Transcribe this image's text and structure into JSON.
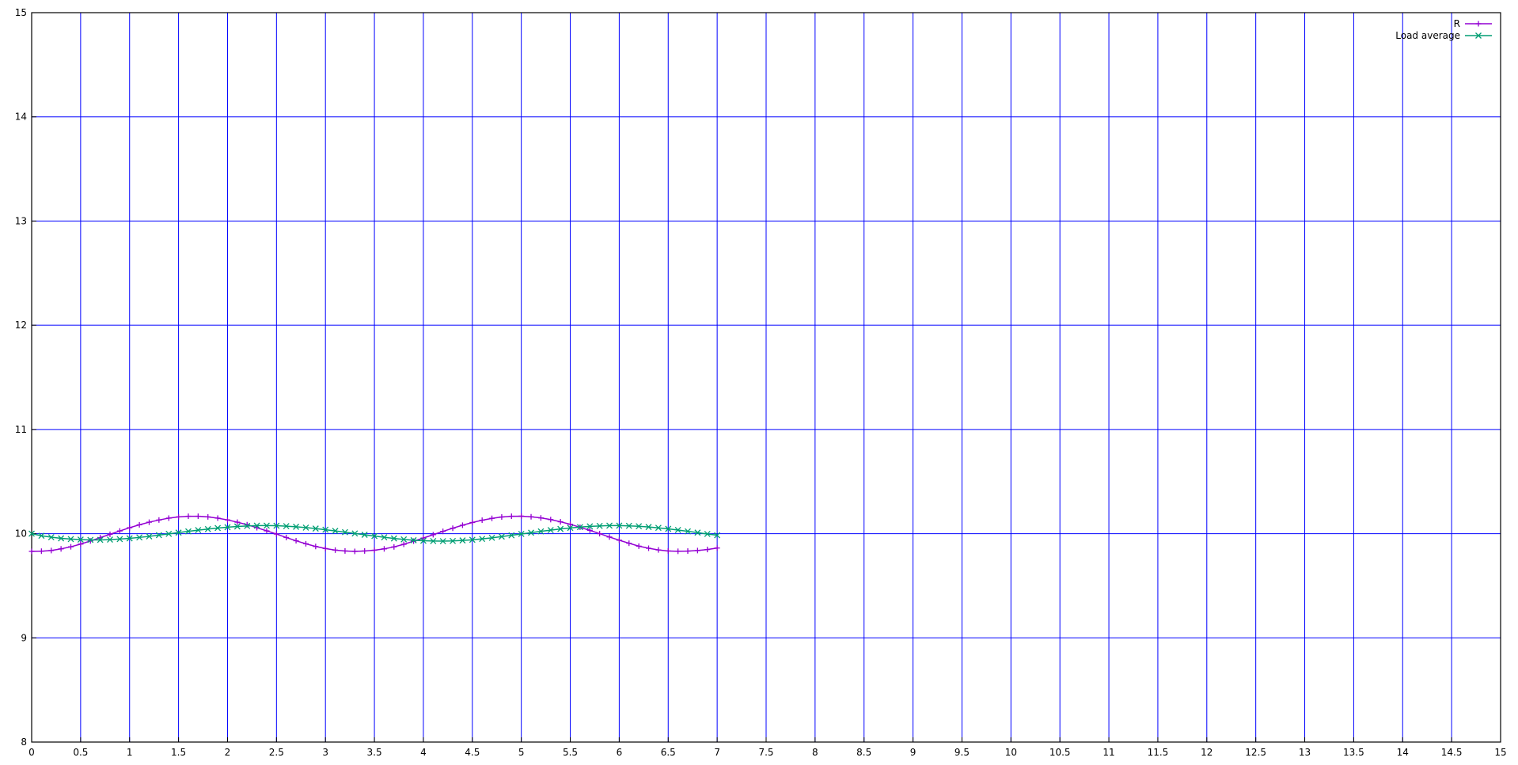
{
  "chart_data": {
    "type": "line",
    "title": "",
    "xlabel": "",
    "ylabel": "",
    "xlim": [
      0,
      15
    ],
    "ylim": [
      8,
      15
    ],
    "grid": true,
    "grid_color": "#0000ff",
    "legend_position": "top-right",
    "x_ticks": [
      "0",
      "0.5",
      "1",
      "1.5",
      "2",
      "2.5",
      "3",
      "3.5",
      "4",
      "4.5",
      "5",
      "5.5",
      "6",
      "6.5",
      "7",
      "7.5",
      "8",
      "8.5",
      "9",
      "9.5",
      "10",
      "10.5",
      "11",
      "11.5",
      "12",
      "12.5",
      "13",
      "13.5",
      "14",
      "14.5",
      "15"
    ],
    "y_ticks": [
      "8",
      "9",
      "10",
      "11",
      "12",
      "13",
      "14",
      "15"
    ],
    "series": [
      {
        "name": "R",
        "color": "#9400d3",
        "marker": "plus",
        "x": [
          0,
          0.1,
          0.2,
          0.3,
          0.4,
          0.5,
          0.6,
          0.7,
          0.8,
          0.9,
          1,
          1.1,
          1.2,
          1.3,
          1.4,
          1.5,
          1.6,
          1.7,
          1.8,
          1.9,
          2,
          2.1,
          2.2,
          2.3,
          2.4,
          2.5,
          2.6,
          2.7,
          2.8,
          2.9,
          3,
          3.1,
          3.2,
          3.3,
          3.4,
          3.5,
          3.6,
          3.7,
          3.8,
          3.9,
          4,
          4.1,
          4.2,
          4.3,
          4.4,
          4.5,
          4.6,
          4.7,
          4.8,
          4.9,
          5,
          5.1,
          5.2,
          5.3,
          5.4,
          5.5,
          5.6,
          5.7,
          5.8,
          5.9,
          6,
          6.1,
          6.2,
          6.3,
          6.4,
          6.5,
          6.6,
          6.7,
          6.8,
          6.9,
          7
        ],
        "y": [
          9.83,
          9.832,
          9.838,
          9.854,
          9.874,
          9.9,
          9.93,
          9.962,
          9.994,
          10.026,
          10.057,
          10.085,
          10.11,
          10.131,
          10.149,
          10.161,
          10.167,
          10.167,
          10.161,
          10.149,
          10.132,
          10.11,
          10.086,
          10.057,
          10.027,
          9.996,
          9.963,
          9.932,
          9.903,
          9.877,
          9.857,
          9.842,
          9.834,
          9.83,
          9.834,
          9.841,
          9.854,
          9.873,
          9.898,
          9.928,
          9.958,
          9.99,
          10.022,
          10.052,
          10.081,
          10.107,
          10.129,
          10.147,
          10.16,
          10.167,
          10.168,
          10.162,
          10.151,
          10.135,
          10.114,
          10.09,
          10.061,
          10.032,
          10.0,
          9.968,
          9.937,
          9.908,
          9.88,
          9.86,
          9.844,
          9.834,
          9.831,
          9.833,
          9.838,
          9.848,
          9.862
        ]
      },
      {
        "name": "Load average",
        "color": "#009e73",
        "marker": "x",
        "x": [
          0,
          0.1,
          0.2,
          0.3,
          0.4,
          0.5,
          0.6,
          0.7,
          0.8,
          0.9,
          1,
          1.1,
          1.2,
          1.3,
          1.4,
          1.5,
          1.6,
          1.7,
          1.8,
          1.9,
          2,
          2.1,
          2.2,
          2.3,
          2.4,
          2.5,
          2.6,
          2.7,
          2.8,
          2.9,
          3,
          3.1,
          3.2,
          3.3,
          3.4,
          3.5,
          3.6,
          3.7,
          3.8,
          3.9,
          4,
          4.1,
          4.2,
          4.3,
          4.4,
          4.5,
          4.6,
          4.7,
          4.8,
          4.9,
          5,
          5.1,
          5.2,
          5.3,
          5.4,
          5.5,
          5.6,
          5.7,
          5.8,
          5.9,
          6,
          6.1,
          6.2,
          6.3,
          6.4,
          6.5,
          6.6,
          6.7,
          6.8,
          6.9,
          7
        ],
        "y": [
          10.0,
          9.98,
          9.966,
          9.955,
          9.948,
          9.943,
          9.94,
          9.94,
          9.943,
          9.948,
          9.955,
          9.964,
          9.974,
          9.986,
          9.998,
          10.01,
          10.022,
          10.034,
          10.044,
          10.054,
          10.062,
          10.069,
          10.074,
          10.077,
          10.077,
          10.076,
          10.072,
          10.066,
          10.058,
          10.049,
          10.038,
          10.026,
          10.014,
          10.002,
          9.989,
          9.977,
          9.965,
          9.954,
          9.945,
          9.937,
          9.932,
          9.929,
          9.928,
          9.93,
          9.935,
          9.941,
          9.95,
          9.96,
          9.972,
          9.984,
          9.997,
          10.009,
          10.022,
          10.034,
          10.045,
          10.055,
          10.063,
          10.07,
          10.074,
          10.077,
          10.077,
          10.075,
          10.071,
          10.064,
          10.056,
          10.046,
          10.035,
          10.022,
          10.01,
          9.997,
          9.985
        ]
      }
    ]
  }
}
